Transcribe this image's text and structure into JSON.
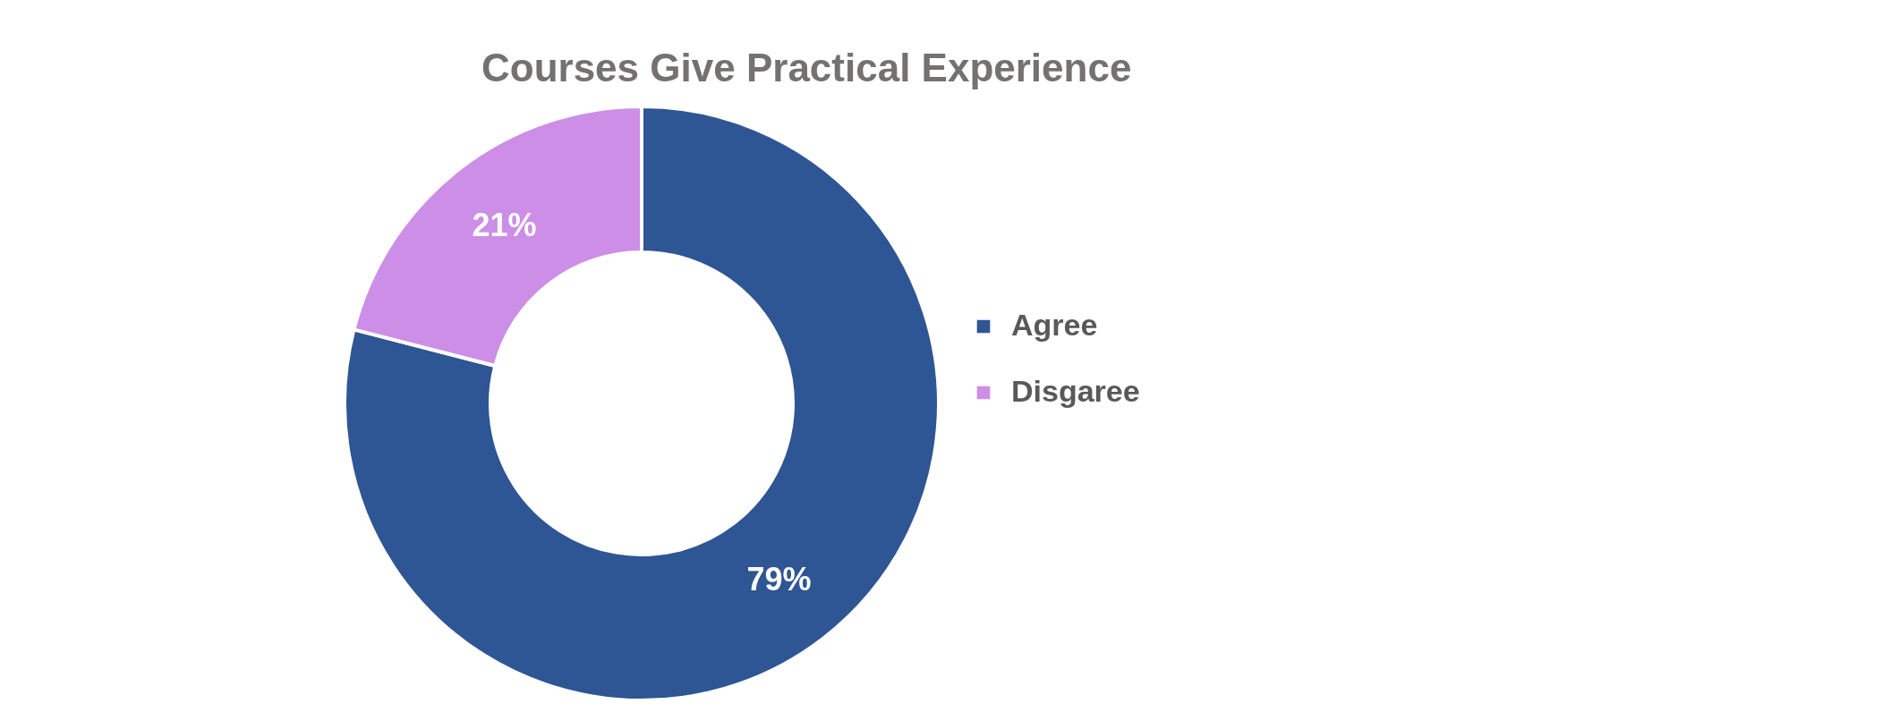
{
  "chart_data": {
    "type": "donut",
    "title": "Courses Give Practical Experience",
    "categories": [
      "Agree",
      "Disgaree"
    ],
    "values": [
      79,
      21
    ],
    "colors": [
      "#2e5594",
      "#cc8ee6"
    ],
    "value_labels": [
      "79%",
      "21%"
    ],
    "legend": "right"
  }
}
